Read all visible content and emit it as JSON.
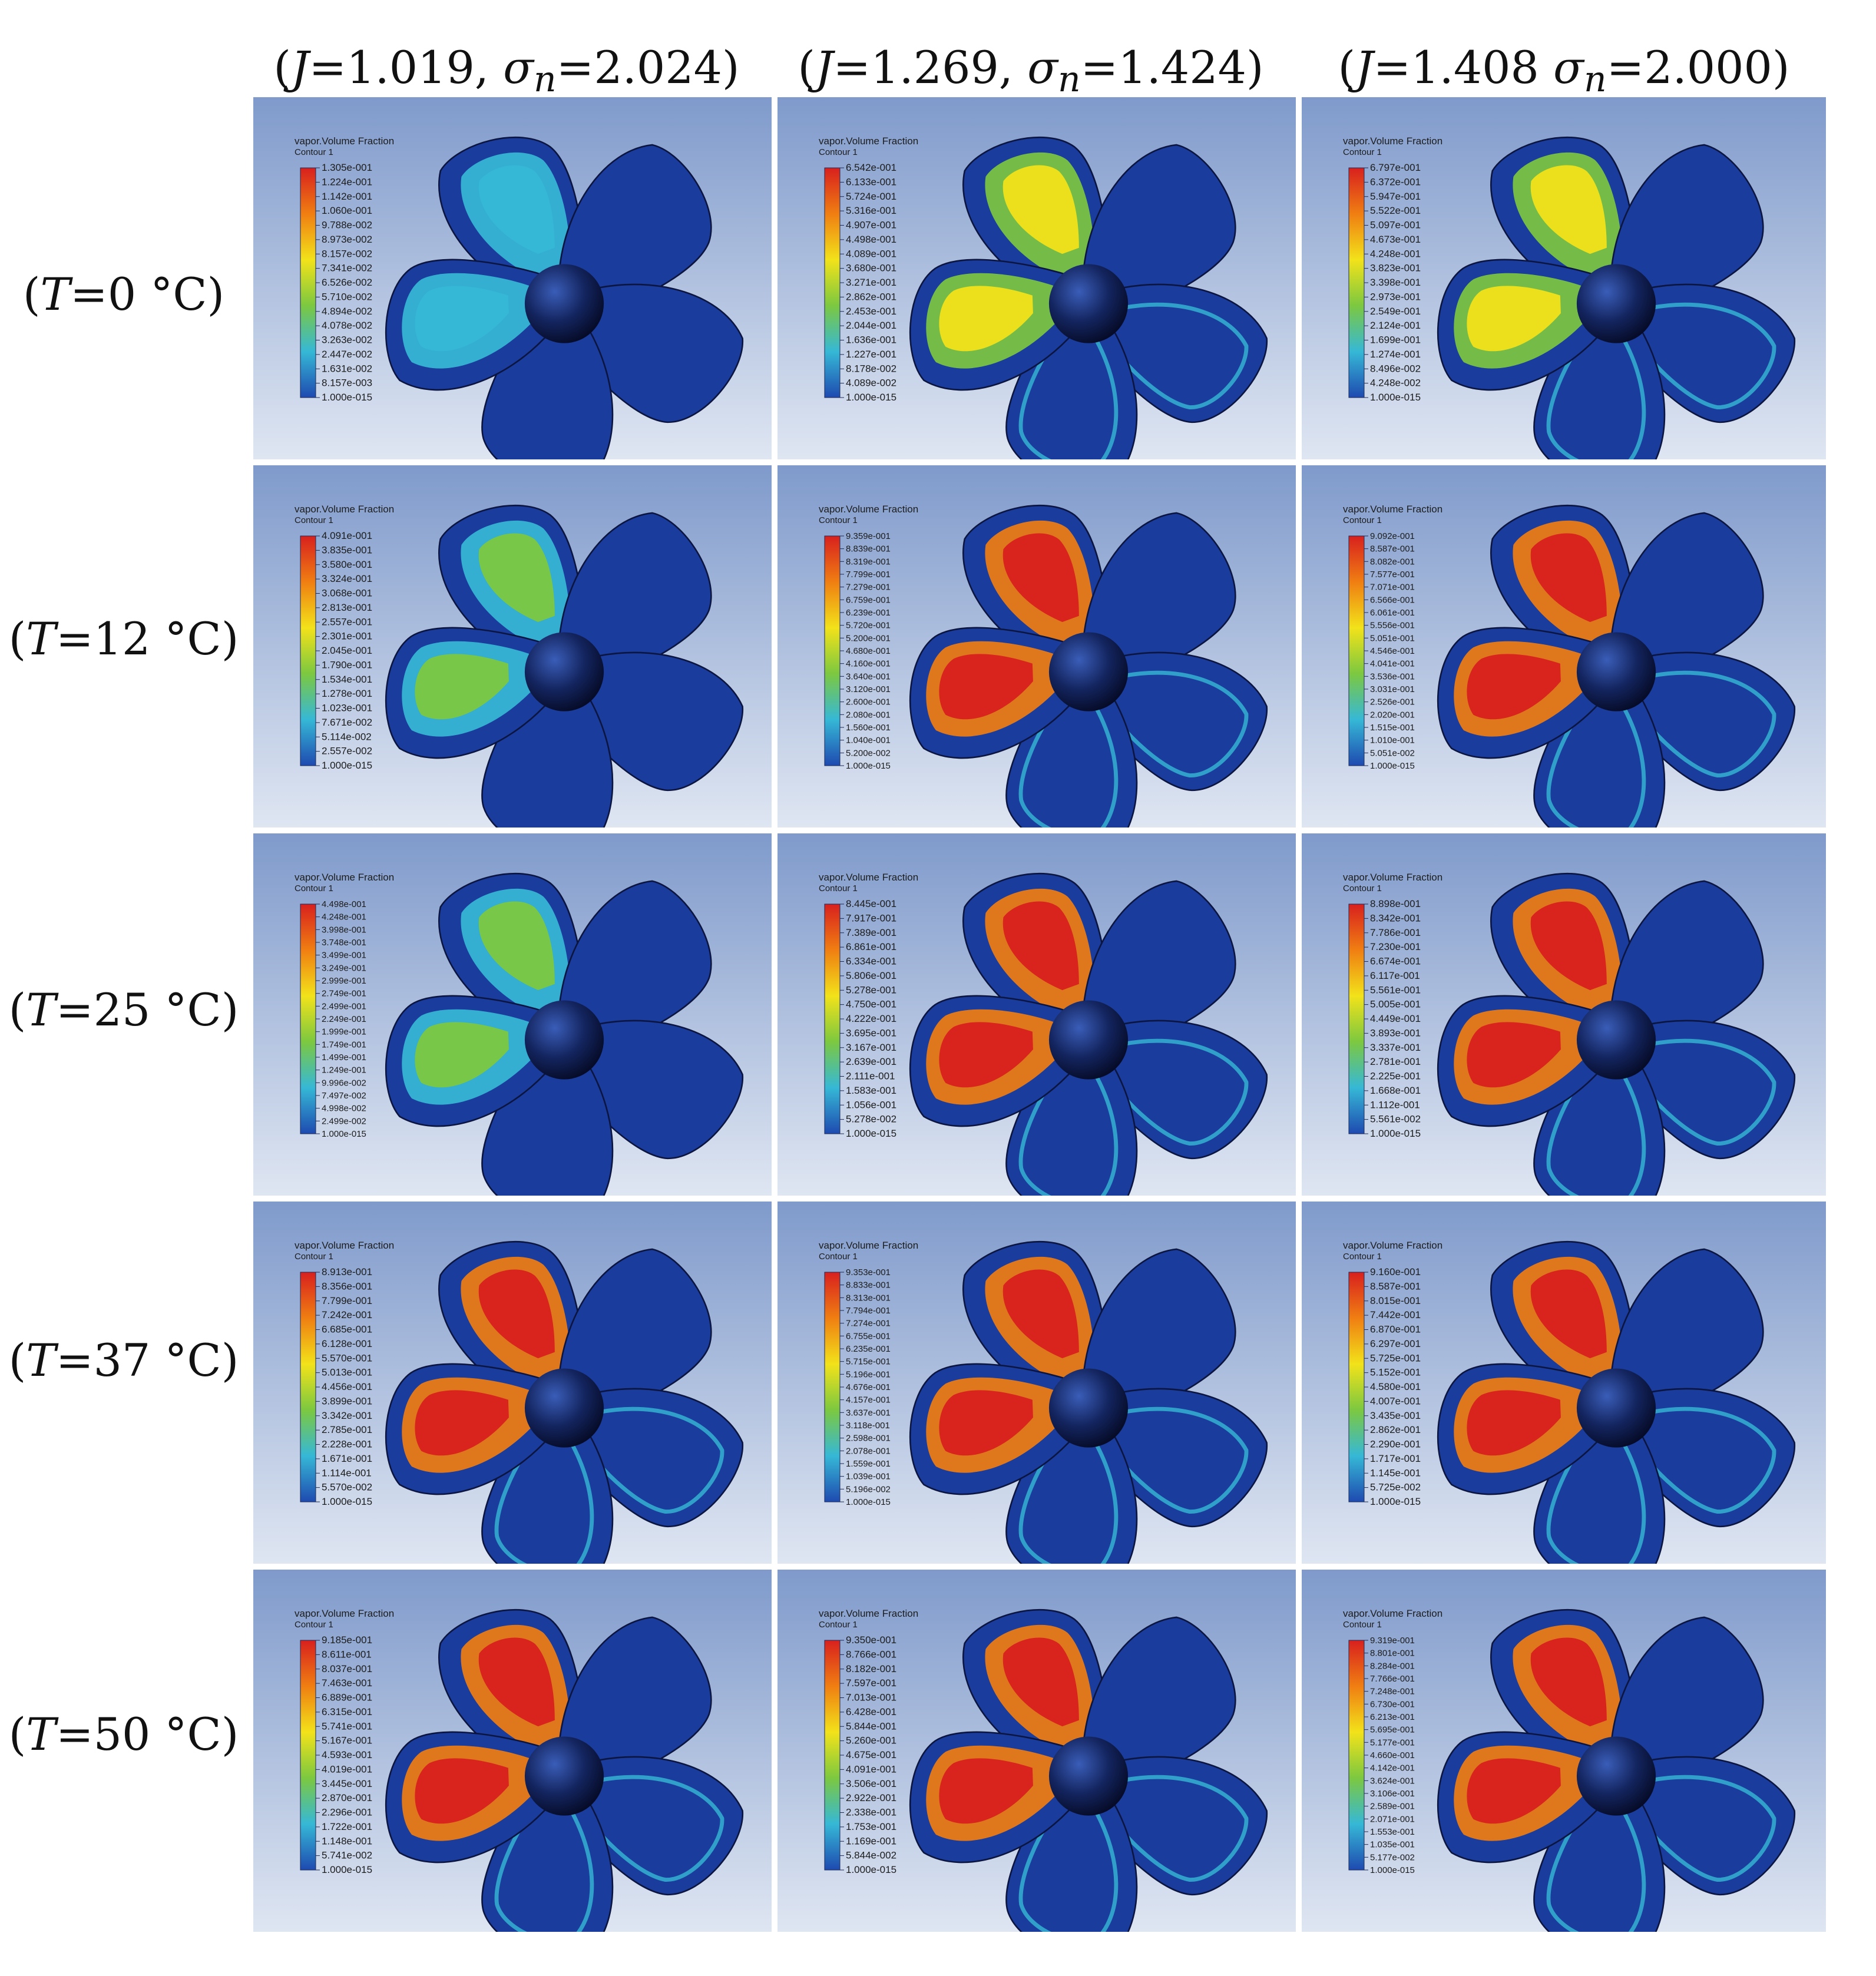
{
  "column_headers": [
    {
      "open": "(",
      "J_sym": "J",
      "J_val": "=1.019, ",
      "sigma_sym": "σ",
      "sigma_sub": "n",
      "sigma_val": "=2.024)"
    },
    {
      "open": "(",
      "J_sym": "J",
      "J_val": "=1.269, ",
      "sigma_sym": "σ",
      "sigma_sub": "n",
      "sigma_val": "=1.424)"
    },
    {
      "open": "(",
      "J_sym": "J",
      "J_val": "=1.408 ",
      "sigma_sym": "σ",
      "sigma_sub": "n",
      "sigma_val": "=2.000)"
    }
  ],
  "row_headers": [
    {
      "open": "(",
      "T_sym": "T",
      "T_val": "=0 °C)"
    },
    {
      "open": "(",
      "T_sym": "T",
      "T_val": "=12 °C)"
    },
    {
      "open": "(",
      "T_sym": "T",
      "T_val": "=25 °C)"
    },
    {
      "open": "(",
      "T_sym": "T",
      "T_val": "=37 °C)"
    },
    {
      "open": "(",
      "T_sym": "T",
      "T_val": "=50 °C)"
    }
  ],
  "legend_title": "vapor.Volume Fraction",
  "legend_subtitle": "Contour 1",
  "colors": {
    "background_top": "#7f9acb",
    "background_bottom": "#dfe6f2",
    "propeller_dark": "#101c4c",
    "propeller_blue": "#1a3c9c",
    "colormap": [
      "#d8201e",
      "#f07e12",
      "#f2e21a",
      "#7cc840",
      "#36b8d6",
      "#1e4ab0"
    ]
  },
  "panels": [
    [
      {
        "row": 0,
        "col": 0,
        "max_fraction": 0.1305,
        "legend_values": [
          "1.305e-001",
          "1.224e-001",
          "1.142e-001",
          "1.060e-001",
          "9.788e-002",
          "8.973e-002",
          "8.157e-002",
          "7.341e-002",
          "6.526e-002",
          "5.710e-002",
          "4.894e-002",
          "4.078e-002",
          "3.263e-002",
          "2.447e-002",
          "1.631e-002",
          "8.157e-003",
          "1.000e-015"
        ]
      },
      {
        "row": 0,
        "col": 1,
        "max_fraction": 0.6542,
        "legend_values": [
          "6.542e-001",
          "6.133e-001",
          "5.724e-001",
          "5.316e-001",
          "4.907e-001",
          "4.498e-001",
          "4.089e-001",
          "3.680e-001",
          "3.271e-001",
          "2.862e-001",
          "2.453e-001",
          "2.044e-001",
          "1.636e-001",
          "1.227e-001",
          "8.178e-002",
          "4.089e-002",
          "1.000e-015"
        ]
      },
      {
        "row": 0,
        "col": 2,
        "max_fraction": 0.6797,
        "legend_values": [
          "6.797e-001",
          "6.372e-001",
          "5.947e-001",
          "5.522e-001",
          "5.097e-001",
          "4.673e-001",
          "4.248e-001",
          "3.823e-001",
          "3.398e-001",
          "2.973e-001",
          "2.549e-001",
          "2.124e-001",
          "1.699e-001",
          "1.274e-001",
          "8.496e-002",
          "4.248e-002",
          "1.000e-015"
        ]
      }
    ],
    [
      {
        "row": 1,
        "col": 0,
        "max_fraction": 0.4091,
        "legend_values": [
          "4.091e-001",
          "3.835e-001",
          "3.580e-001",
          "3.324e-001",
          "3.068e-001",
          "2.813e-001",
          "2.557e-001",
          "2.301e-001",
          "2.045e-001",
          "1.790e-001",
          "1.534e-001",
          "1.278e-001",
          "1.023e-001",
          "7.671e-002",
          "5.114e-002",
          "2.557e-002",
          "1.000e-015"
        ]
      },
      {
        "row": 1,
        "col": 1,
        "max_fraction": 0.9359,
        "legend_values": [
          "9.359e-001",
          "8.839e-001",
          "8.319e-001",
          "7.799e-001",
          "7.279e-001",
          "6.759e-001",
          "6.239e-001",
          "5.720e-001",
          "5.200e-001",
          "4.680e-001",
          "4.160e-001",
          "3.640e-001",
          "3.120e-001",
          "2.600e-001",
          "2.080e-001",
          "1.560e-001",
          "1.040e-001",
          "5.200e-002",
          "1.000e-015"
        ]
      },
      {
        "row": 1,
        "col": 2,
        "max_fraction": 0.9092,
        "legend_values": [
          "9.092e-001",
          "8.587e-001",
          "8.082e-001",
          "7.577e-001",
          "7.071e-001",
          "6.566e-001",
          "6.061e-001",
          "5.556e-001",
          "5.051e-001",
          "4.546e-001",
          "4.041e-001",
          "3.536e-001",
          "3.031e-001",
          "2.526e-001",
          "2.020e-001",
          "1.515e-001",
          "1.010e-001",
          "5.051e-002",
          "1.000e-015"
        ]
      }
    ],
    [
      {
        "row": 2,
        "col": 0,
        "max_fraction": 0.4498,
        "legend_values": [
          "4.498e-001",
          "4.248e-001",
          "3.998e-001",
          "3.748e-001",
          "3.499e-001",
          "3.249e-001",
          "2.999e-001",
          "2.749e-001",
          "2.499e-001",
          "2.249e-001",
          "1.999e-001",
          "1.749e-001",
          "1.499e-001",
          "1.249e-001",
          "9.996e-002",
          "7.497e-002",
          "4.998e-002",
          "2.499e-002",
          "1.000e-015"
        ]
      },
      {
        "row": 2,
        "col": 1,
        "max_fraction": 0.8445,
        "legend_values": [
          "8.445e-001",
          "7.917e-001",
          "7.389e-001",
          "6.861e-001",
          "6.334e-001",
          "5.806e-001",
          "5.278e-001",
          "4.750e-001",
          "4.222e-001",
          "3.695e-001",
          "3.167e-001",
          "2.639e-001",
          "2.111e-001",
          "1.583e-001",
          "1.056e-001",
          "5.278e-002",
          "1.000e-015"
        ]
      },
      {
        "row": 2,
        "col": 2,
        "max_fraction": 0.8898,
        "legend_values": [
          "8.898e-001",
          "8.342e-001",
          "7.786e-001",
          "7.230e-001",
          "6.674e-001",
          "6.117e-001",
          "5.561e-001",
          "5.005e-001",
          "4.449e-001",
          "3.893e-001",
          "3.337e-001",
          "2.781e-001",
          "2.225e-001",
          "1.668e-001",
          "1.112e-001",
          "5.561e-002",
          "1.000e-015"
        ]
      }
    ],
    [
      {
        "row": 3,
        "col": 0,
        "max_fraction": 0.8913,
        "legend_values": [
          "8.913e-001",
          "8.356e-001",
          "7.799e-001",
          "7.242e-001",
          "6.685e-001",
          "6.128e-001",
          "5.570e-001",
          "5.013e-001",
          "4.456e-001",
          "3.899e-001",
          "3.342e-001",
          "2.785e-001",
          "2.228e-001",
          "1.671e-001",
          "1.114e-001",
          "5.570e-002",
          "1.000e-015"
        ]
      },
      {
        "row": 3,
        "col": 1,
        "max_fraction": 0.9353,
        "legend_values": [
          "9.353e-001",
          "8.833e-001",
          "8.313e-001",
          "7.794e-001",
          "7.274e-001",
          "6.755e-001",
          "6.235e-001",
          "5.715e-001",
          "5.196e-001",
          "4.676e-001",
          "4.157e-001",
          "3.637e-001",
          "3.118e-001",
          "2.598e-001",
          "2.078e-001",
          "1.559e-001",
          "1.039e-001",
          "5.196e-002",
          "1.000e-015"
        ]
      },
      {
        "row": 3,
        "col": 2,
        "max_fraction": 0.916,
        "legend_values": [
          "9.160e-001",
          "8.587e-001",
          "8.015e-001",
          "7.442e-001",
          "6.870e-001",
          "6.297e-001",
          "5.725e-001",
          "5.152e-001",
          "4.580e-001",
          "4.007e-001",
          "3.435e-001",
          "2.862e-001",
          "2.290e-001",
          "1.717e-001",
          "1.145e-001",
          "5.725e-002",
          "1.000e-015"
        ]
      }
    ],
    [
      {
        "row": 4,
        "col": 0,
        "max_fraction": 0.9185,
        "legend_values": [
          "9.185e-001",
          "8.611e-001",
          "8.037e-001",
          "7.463e-001",
          "6.889e-001",
          "6.315e-001",
          "5.741e-001",
          "5.167e-001",
          "4.593e-001",
          "4.019e-001",
          "3.445e-001",
          "2.870e-001",
          "2.296e-001",
          "1.722e-001",
          "1.148e-001",
          "5.741e-002",
          "1.000e-015"
        ]
      },
      {
        "row": 4,
        "col": 1,
        "max_fraction": 0.935,
        "legend_values": [
          "9.350e-001",
          "8.766e-001",
          "8.182e-001",
          "7.597e-001",
          "7.013e-001",
          "6.428e-001",
          "5.844e-001",
          "5.260e-001",
          "4.675e-001",
          "4.091e-001",
          "3.506e-001",
          "2.922e-001",
          "2.338e-001",
          "1.753e-001",
          "1.169e-001",
          "5.844e-002",
          "1.000e-015"
        ]
      },
      {
        "row": 4,
        "col": 2,
        "max_fraction": 0.9319,
        "legend_values": [
          "9.319e-001",
          "8.801e-001",
          "8.284e-001",
          "7.766e-001",
          "7.248e-001",
          "6.730e-001",
          "6.213e-001",
          "5.695e-001",
          "5.177e-001",
          "4.660e-001",
          "4.142e-001",
          "3.624e-001",
          "3.106e-001",
          "2.589e-001",
          "2.071e-001",
          "1.553e-001",
          "1.035e-001",
          "5.177e-002",
          "1.000e-015"
        ]
      }
    ]
  ]
}
